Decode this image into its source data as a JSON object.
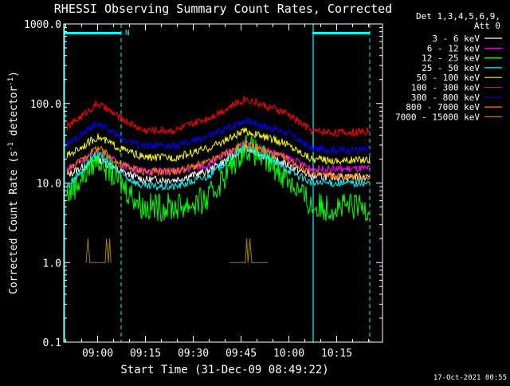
{
  "footer_timestamp": "17-Oct-2021 00:55",
  "chart_data": {
    "type": "line",
    "title": "RHESSI Observing Summary Count Rates, Corrected",
    "xlabel": "Start Time (31-Dec-09 08:49:22)",
    "ylabel_parts": [
      "Corrected Count Rate (s",
      "-1",
      " detector",
      "-1",
      ")"
    ],
    "y_scale": "log",
    "ylim": [
      0.1,
      1000
    ],
    "y_ticks": [
      {
        "value": 0.1,
        "label": "0.1"
      },
      {
        "value": 1,
        "label": "1.0"
      },
      {
        "value": 10,
        "label": "10.0"
      },
      {
        "value": 100,
        "label": "100.0"
      },
      {
        "value": 1000,
        "label": "1000.0"
      }
    ],
    "x_unit": "minutes after 08:49:22",
    "xlim": [
      0,
      100
    ],
    "x_ticks": [
      {
        "value": 10.63,
        "label": "09:00"
      },
      {
        "value": 25.63,
        "label": "09:15"
      },
      {
        "value": 40.63,
        "label": "09:30"
      },
      {
        "value": 55.63,
        "label": "09:45"
      },
      {
        "value": 70.63,
        "label": "10:00"
      },
      {
        "value": 85.63,
        "label": "10:15"
      }
    ],
    "legend": {
      "header": [
        "Det 1,3,4,5,6,9,",
        "Att 0"
      ],
      "placement": "right"
    },
    "night_intervals": [
      [
        0,
        18
      ],
      [
        78,
        96
      ]
    ],
    "night_marker": "N",
    "night_bar_color": "#00ffff",
    "series": [
      {
        "name": "3 - 6 keV",
        "color": "#ffffff",
        "points": [
          [
            1,
            12.5
          ],
          [
            10.6,
            20
          ],
          [
            18,
            14
          ],
          [
            25,
            11
          ],
          [
            35,
            11
          ],
          [
            45,
            14
          ],
          [
            57,
            27
          ],
          [
            70,
            17
          ],
          [
            78,
            12
          ],
          [
            87,
            12
          ],
          [
            96,
            12
          ]
        ]
      },
      {
        "name": "6 - 12 keV",
        "color": "#ff00ff",
        "points": [
          [
            1,
            15
          ],
          [
            10.6,
            25
          ],
          [
            18,
            17
          ],
          [
            25,
            14
          ],
          [
            35,
            14
          ],
          [
            45,
            17
          ],
          [
            57,
            32
          ],
          [
            70,
            21
          ],
          [
            78,
            15
          ],
          [
            87,
            15
          ],
          [
            96,
            15
          ]
        ]
      },
      {
        "name": "12 - 25 keV",
        "color": "#00ff00",
        "points": [
          [
            1,
            7
          ],
          [
            10.6,
            21
          ],
          [
            18,
            10
          ],
          [
            25,
            5
          ],
          [
            35,
            5
          ],
          [
            45,
            6
          ],
          [
            57,
            30
          ],
          [
            70,
            12
          ],
          [
            78,
            5
          ],
          [
            87,
            5
          ],
          [
            96,
            5
          ]
        ]
      },
      {
        "name": "25 - 50 keV",
        "color": "#00ffff",
        "points": [
          [
            1,
            9
          ],
          [
            10.6,
            23
          ],
          [
            18,
            13
          ],
          [
            25,
            9
          ],
          [
            35,
            9
          ],
          [
            45,
            12
          ],
          [
            57,
            29
          ],
          [
            70,
            15
          ],
          [
            78,
            10
          ],
          [
            87,
            10
          ],
          [
            96,
            10
          ]
        ]
      },
      {
        "name": "50 - 100 keV",
        "color": "#ffff00",
        "points": [
          [
            1,
            22
          ],
          [
            10.6,
            38
          ],
          [
            18,
            27
          ],
          [
            25,
            21
          ],
          [
            35,
            21
          ],
          [
            45,
            27
          ],
          [
            57,
            45
          ],
          [
            70,
            31
          ],
          [
            78,
            20
          ],
          [
            87,
            19
          ],
          [
            96,
            20
          ]
        ]
      },
      {
        "name": "100 - 300 keV",
        "color": "#ff0000",
        "points": [
          [
            1,
            50
          ],
          [
            10.6,
            100
          ],
          [
            18,
            65
          ],
          [
            25,
            46
          ],
          [
            35,
            46
          ],
          [
            45,
            65
          ],
          [
            57,
            115
          ],
          [
            70,
            75
          ],
          [
            78,
            45
          ],
          [
            87,
            43
          ],
          [
            96,
            45
          ]
        ]
      },
      {
        "name": "300 - 800 keV",
        "color": "#0000ff",
        "points": [
          [
            1,
            30
          ],
          [
            10.6,
            57
          ],
          [
            18,
            37
          ],
          [
            25,
            29
          ],
          [
            35,
            29
          ],
          [
            45,
            38
          ],
          [
            57,
            62
          ],
          [
            70,
            43
          ],
          [
            78,
            27
          ],
          [
            87,
            26
          ],
          [
            96,
            26
          ]
        ]
      },
      {
        "name": "800 - 7000 keV",
        "color": "#ff8000",
        "points": [
          [
            1,
            14
          ],
          [
            10.6,
            28
          ],
          [
            18,
            17
          ],
          [
            25,
            14
          ],
          [
            35,
            14
          ],
          [
            45,
            18
          ],
          [
            57,
            31
          ],
          [
            70,
            20
          ],
          [
            78,
            13
          ],
          [
            87,
            12
          ],
          [
            96,
            12
          ]
        ]
      },
      {
        "name": "7000 - 15000 keV",
        "color": "#a08000",
        "points": [
          [
            7,
            1
          ],
          [
            7.6,
            2
          ],
          [
            8.2,
            1
          ],
          [
            13,
            1
          ],
          [
            13.4,
            2
          ],
          [
            14,
            1
          ],
          [
            14.4,
            2
          ],
          [
            14.8,
            1
          ],
          [
            52,
            1
          ],
          [
            57,
            1
          ],
          [
            57.4,
            2
          ],
          [
            57.8,
            1
          ],
          [
            58.4,
            2
          ],
          [
            59,
            1
          ],
          [
            64,
            1
          ]
        ]
      }
    ]
  }
}
